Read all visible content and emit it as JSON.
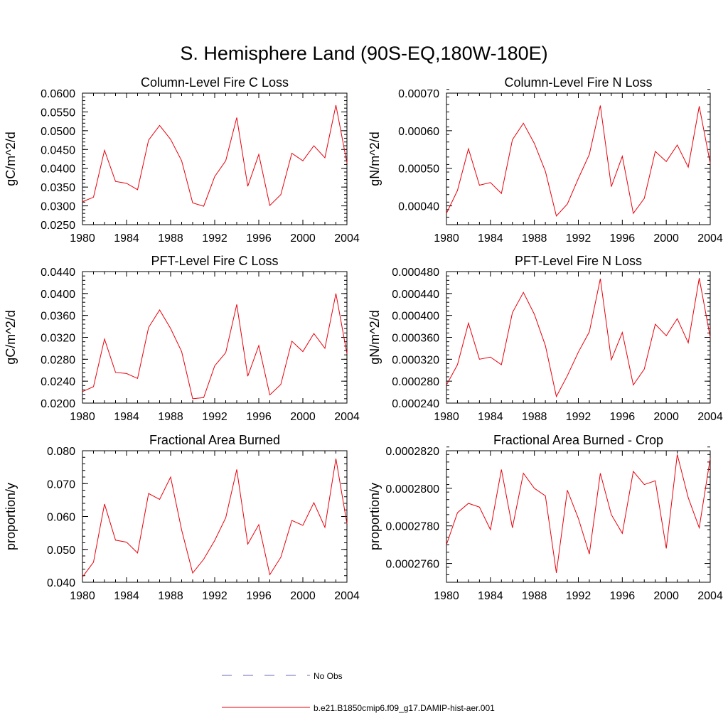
{
  "page_title": "S. Hemisphere Land (90S-EQ,180W-180E)",
  "legend": {
    "placement": "bottom-center",
    "entries": [
      {
        "label": "No Obs",
        "color": "#6a6ab8",
        "style": "dashed"
      },
      {
        "label": "b.e21.B1850cmip6.f09_g17.DAMIP-hist-aer.001",
        "color": "#e8000b",
        "style": "solid"
      }
    ]
  },
  "line_color": "#e8000b",
  "chart_data": [
    {
      "type": "line",
      "title": "Column-Level Fire C Loss",
      "ylabel": "gC/m^2/d",
      "xlim": [
        1980,
        2004
      ],
      "ylim": [
        0.025,
        0.06
      ],
      "xticks": [
        "1980",
        "1984",
        "1988",
        "1992",
        "1996",
        "2000",
        "2004"
      ],
      "yticks": [
        "0.0250",
        "0.0300",
        "0.0350",
        "0.0400",
        "0.0450",
        "0.0500",
        "0.0550",
        "0.0600"
      ],
      "series": [
        {
          "values": [
            0.0311,
            0.0323,
            0.0448,
            0.0365,
            0.036,
            0.0343,
            0.0475,
            0.0514,
            0.0477,
            0.042,
            0.0308,
            0.0299,
            0.0378,
            0.042,
            0.0535,
            0.0352,
            0.0437,
            0.0301,
            0.033,
            0.044,
            0.042,
            0.046,
            0.0428,
            0.0568,
            0.0414
          ]
        }
      ]
    },
    {
      "type": "line",
      "title": "Column-Level Fire N Loss",
      "ylabel": "gN/m^2/d",
      "xlim": [
        1980,
        2004
      ],
      "ylim": [
        0.00035,
        0.0007
      ],
      "xticks": [
        "1980",
        "1984",
        "1988",
        "1992",
        "1996",
        "2000",
        "2004"
      ],
      "yticks": [
        "0.00040",
        "0.00050",
        "0.00060",
        "0.00070"
      ],
      "series": [
        {
          "values": [
            0.00038,
            0.000441,
            0.000552,
            0.000455,
            0.000462,
            0.000433,
            0.000576,
            0.00062,
            0.000566,
            0.000492,
            0.000373,
            0.000405,
            0.000473,
            0.000537,
            0.000667,
            0.000451,
            0.000532,
            0.00038,
            0.00042,
            0.000545,
            0.000518,
            0.000562,
            0.000503,
            0.000665,
            0.000513
          ]
        }
      ]
    },
    {
      "type": "line",
      "title": "PFT-Level Fire C Loss",
      "ylabel": "gC/m^2/d",
      "xlim": [
        1980,
        2004
      ],
      "ylim": [
        0.02,
        0.044
      ],
      "xticks": [
        "1980",
        "1984",
        "1988",
        "1992",
        "1996",
        "2000",
        "2004"
      ],
      "yticks": [
        "0.0200",
        "0.0240",
        "0.0280",
        "0.0320",
        "0.0360",
        "0.0400",
        "0.0440"
      ],
      "series": [
        {
          "values": [
            0.0221,
            0.023,
            0.0317,
            0.0256,
            0.0254,
            0.0245,
            0.0338,
            0.037,
            0.0336,
            0.0294,
            0.0208,
            0.021,
            0.0268,
            0.0292,
            0.038,
            0.0249,
            0.0305,
            0.0215,
            0.0234,
            0.0313,
            0.0294,
            0.0327,
            0.03,
            0.04,
            0.029
          ]
        }
      ]
    },
    {
      "type": "line",
      "title": "PFT-Level Fire N Loss",
      "ylabel": "gN/m^2/d",
      "xlim": [
        1980,
        2004
      ],
      "ylim": [
        0.00024,
        0.00048
      ],
      "xticks": [
        "1980",
        "1984",
        "1988",
        "1992",
        "1996",
        "2000",
        "2004"
      ],
      "yticks": [
        "0.000240",
        "0.000280",
        "0.000320",
        "0.000360",
        "0.000400",
        "0.000440",
        "0.000480"
      ],
      "series": [
        {
          "values": [
            0.000273,
            0.00031,
            0.000386,
            0.00032,
            0.000324,
            0.00031,
            0.000405,
            0.000442,
            0.000402,
            0.000345,
            0.000252,
            0.00029,
            0.000333,
            0.00037,
            0.000467,
            0.000319,
            0.000369,
            0.000273,
            0.000302,
            0.000384,
            0.000363,
            0.000394,
            0.00035,
            0.000468,
            0.00036
          ]
        }
      ]
    },
    {
      "type": "line",
      "title": "Fractional Area Burned",
      "ylabel": "proportion/y",
      "xlim": [
        1980,
        2004
      ],
      "ylim": [
        0.04,
        0.08
      ],
      "xticks": [
        "1980",
        "1984",
        "1988",
        "1992",
        "1996",
        "2000",
        "2004"
      ],
      "yticks": [
        "0.040",
        "0.050",
        "0.060",
        "0.070",
        "0.080"
      ],
      "series": [
        {
          "values": [
            0.0416,
            0.0461,
            0.0638,
            0.0528,
            0.0522,
            0.0489,
            0.067,
            0.0652,
            0.072,
            0.0559,
            0.0428,
            0.047,
            0.0527,
            0.0596,
            0.0743,
            0.0516,
            0.0575,
            0.0423,
            0.0476,
            0.0588,
            0.0573,
            0.0642,
            0.0567,
            0.0776,
            0.0578
          ]
        }
      ]
    },
    {
      "type": "line",
      "title": "Fractional Area Burned - Crop",
      "ylabel": "proportion/y",
      "xlim": [
        1980,
        2004
      ],
      "ylim": [
        0.000275,
        0.000282
      ],
      "xticks": [
        "1980",
        "1984",
        "1988",
        "1992",
        "1996",
        "2000",
        "2004"
      ],
      "yticks": [
        "0.0002760",
        "0.0002780",
        "0.0002800",
        "0.0002820"
      ],
      "series": [
        {
          "values": [
            0.000277,
            0.0002787,
            0.0002792,
            0.000279,
            0.0002778,
            0.000281,
            0.0002779,
            0.0002808,
            0.00028,
            0.0002796,
            0.0002755,
            0.0002799,
            0.0002784,
            0.0002765,
            0.0002808,
            0.0002786,
            0.0002776,
            0.0002809,
            0.0002802,
            0.0002804,
            0.0002768,
            0.0002818,
            0.0002795,
            0.0002779,
            0.0002816
          ]
        }
      ]
    }
  ]
}
